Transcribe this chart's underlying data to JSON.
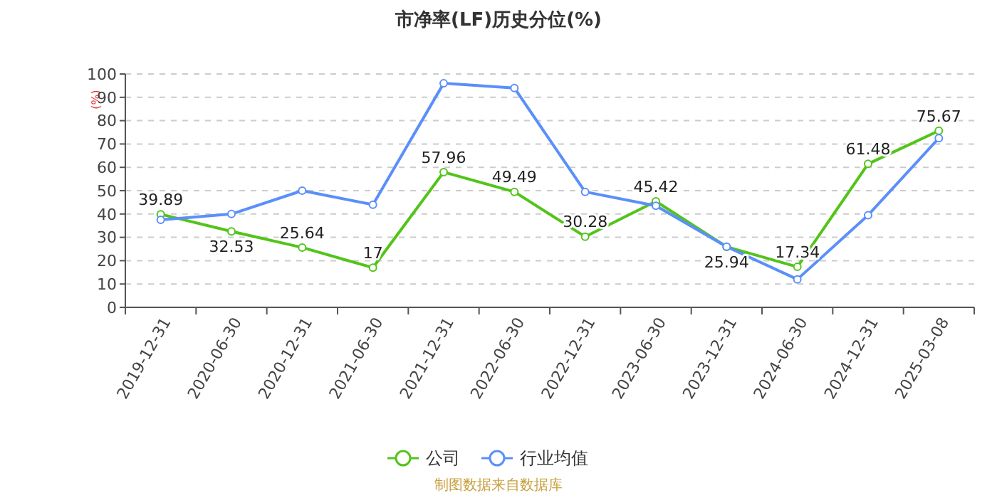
{
  "chart_data": {
    "type": "line",
    "title": "市净率(LF)历史分位(%)",
    "ylabel": "(%)",
    "categories": [
      "2019-12-31",
      "2020-06-30",
      "2020-12-31",
      "2021-06-30",
      "2021-12-31",
      "2022-06-30",
      "2022-12-31",
      "2023-06-30",
      "2023-12-31",
      "2024-06-30",
      "2024-12-31",
      "2025-03-08"
    ],
    "series": [
      {
        "name": "公司",
        "color": "#52c41a",
        "values": [
          39.89,
          32.53,
          25.64,
          17,
          57.96,
          49.49,
          30.28,
          45.42,
          25.94,
          17.34,
          61.48,
          75.67
        ],
        "value_labels": [
          "39.89",
          "32.53",
          "25.64",
          "17",
          "57.96",
          "49.49",
          "30.28",
          "45.42",
          "25.94",
          "17.34",
          "61.48",
          "75.67"
        ]
      },
      {
        "name": "行业均值",
        "color": "#5b8ff9",
        "values": [
          37.5,
          40,
          50,
          44,
          96,
          94,
          49.5,
          43.5,
          26,
          12,
          39.5,
          72.5
        ]
      }
    ],
    "ylim": [
      0,
      100
    ],
    "yticks": [
      0,
      10,
      20,
      30,
      40,
      50,
      60,
      70,
      80,
      90,
      100
    ],
    "grid": "y",
    "legend": "bottom",
    "marker": "circle",
    "annotations": [
      "制图数据来自数据库"
    ]
  }
}
